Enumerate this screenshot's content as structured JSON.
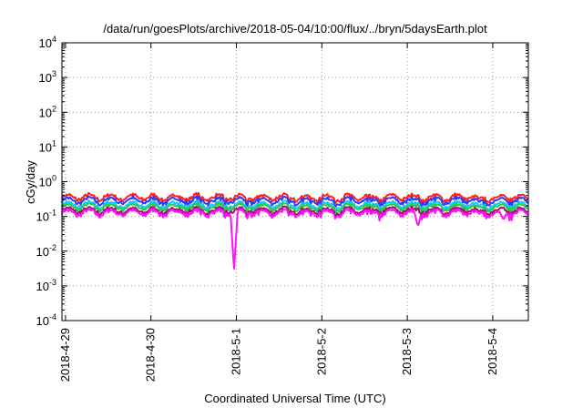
{
  "chart_data": {
    "type": "line",
    "title": "/data/run/goesPlots/archive/2018-05-04/10:00/flux/../bryn/5daysEarth.plot",
    "xlabel": "Coordinated Universal Time (UTC)",
    "ylabel": "cGy/day",
    "yscale": "log",
    "ylim": [
      0.0001,
      10000
    ],
    "xlim": [
      "2018-04-28T23:00",
      "2018-05-04T10:00"
    ],
    "grid": true,
    "x_ticks": [
      "2018-4-29",
      "2018-4-30",
      "2018-5-1",
      "2018-5-2",
      "2018-5-3",
      "2018-5-4"
    ],
    "y_ticks": [
      {
        "base": "10",
        "exp": "-4"
      },
      {
        "base": "10",
        "exp": "-3"
      },
      {
        "base": "10",
        "exp": "-2"
      },
      {
        "base": "10",
        "exp": "-1"
      },
      {
        "base": "10",
        "exp": "0"
      },
      {
        "base": "10",
        "exp": "1"
      },
      {
        "base": "10",
        "exp": "2"
      },
      {
        "base": "10",
        "exp": "3"
      },
      {
        "base": "10",
        "exp": "4"
      }
    ],
    "series": [
      {
        "color": "#ff2020",
        "base": 0.36,
        "dips": []
      },
      {
        "color": "#2a3cff",
        "base": 0.29,
        "dips": []
      },
      {
        "color": "#19c8ff",
        "base": 0.22,
        "dips": []
      },
      {
        "color": "#2ec84a",
        "base": 0.19,
        "dips": []
      },
      {
        "color": "#a01070",
        "base": 0.15,
        "dips": []
      },
      {
        "color": "#ff10ff",
        "base": 0.13,
        "dips": [
          {
            "x": "2018-04-30T23:20",
            "value": 0.003
          },
          {
            "x": "2018-05-03T03:00",
            "value": 0.05
          },
          {
            "x": "2018-05-04T03:00",
            "value": 0.08
          }
        ]
      }
    ]
  }
}
